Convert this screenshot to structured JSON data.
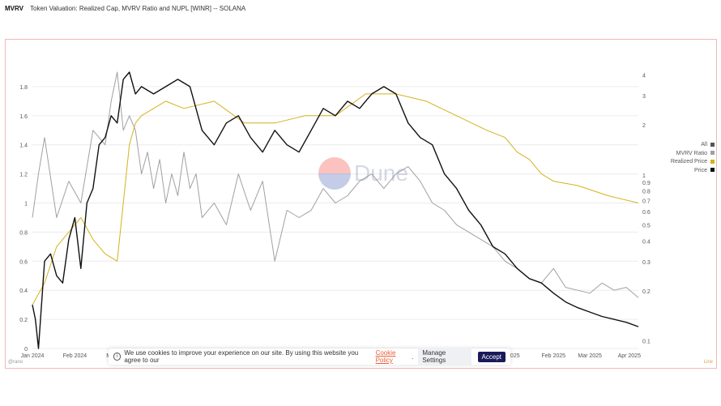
{
  "header": {
    "brand": "MVRV",
    "title": "Token Valuation: Realized Cap, MVRV Ratio and NUPL [WINR] -- SOLANA"
  },
  "legend": [
    {
      "label": "All",
      "color": "#555555"
    },
    {
      "label": "MVRV Ratio",
      "color": "#a0a0a0"
    },
    {
      "label": "Realized Price",
      "color": "#d4b21c"
    },
    {
      "label": "Price",
      "color": "#111111"
    }
  ],
  "watermark": "Dune",
  "footer": {
    "user": "@rano",
    "right": "Line"
  },
  "cookie": {
    "text": "We use cookies to improve your experience on our site. By using this website you agree to our",
    "link": "Cookie Policy",
    "manage": "Manage Settings",
    "accept": "Accept"
  },
  "chart_data": {
    "type": "line",
    "x_ticks": [
      "Jan 2024",
      "Feb 2024",
      "Mar",
      "Feb 2025",
      "Mar 2025",
      "Apr 2025"
    ],
    "x_hidden_partial": "1 2025",
    "y_left": {
      "ticks": [
        0,
        0.2,
        0.4,
        0.6,
        0.8,
        1,
        1.2,
        1.4,
        1.6,
        1.8
      ],
      "range": [
        0,
        1.95
      ]
    },
    "y_right": {
      "scale": "log",
      "ticks": [
        0.1,
        0.2,
        0.3,
        0.4,
        0.5,
        0.6,
        0.7,
        0.8,
        0.9,
        1,
        2,
        3,
        4
      ],
      "range": [
        0.09,
        4.6
      ]
    },
    "series": [
      {
        "name": "MVRV Ratio",
        "axis": "left",
        "color": "#a0a0a0",
        "x": [
          0,
          0.01,
          0.02,
          0.04,
          0.06,
          0.08,
          0.1,
          0.12,
          0.13,
          0.14,
          0.15,
          0.16,
          0.17,
          0.18,
          0.19,
          0.2,
          0.21,
          0.22,
          0.23,
          0.24,
          0.25,
          0.26,
          0.27,
          0.28,
          0.3,
          0.32,
          0.34,
          0.36,
          0.38,
          0.4,
          0.42,
          0.44,
          0.46,
          0.48,
          0.5,
          0.52,
          0.54,
          0.56,
          0.58,
          0.6,
          0.62,
          0.64,
          0.66,
          0.68,
          0.7,
          0.72,
          0.74,
          0.76,
          0.78,
          0.8,
          0.82,
          0.84,
          0.86,
          0.88,
          0.9,
          0.92,
          0.94,
          0.96,
          0.98,
          1.0
        ],
        "y": [
          0.9,
          1.2,
          1.45,
          0.9,
          1.15,
          1.0,
          1.5,
          1.4,
          1.7,
          1.9,
          1.5,
          1.6,
          1.5,
          1.2,
          1.35,
          1.1,
          1.3,
          1.0,
          1.2,
          1.05,
          1.35,
          1.1,
          1.2,
          0.9,
          1.0,
          0.85,
          1.2,
          0.95,
          1.15,
          0.6,
          0.95,
          0.9,
          0.95,
          1.1,
          1.0,
          1.05,
          1.15,
          1.2,
          1.1,
          1.2,
          1.25,
          1.15,
          1.0,
          0.95,
          0.85,
          0.8,
          0.75,
          0.7,
          0.6,
          0.55,
          0.48,
          0.45,
          0.55,
          0.42,
          0.4,
          0.38,
          0.45,
          0.4,
          0.42,
          0.35
        ]
      },
      {
        "name": "Realized Price",
        "axis": "left",
        "color": "#d4b21c",
        "x": [
          0,
          0.02,
          0.04,
          0.06,
          0.08,
          0.1,
          0.12,
          0.14,
          0.15,
          0.16,
          0.17,
          0.18,
          0.2,
          0.22,
          0.25,
          0.3,
          0.35,
          0.4,
          0.45,
          0.5,
          0.55,
          0.6,
          0.65,
          0.7,
          0.75,
          0.78,
          0.8,
          0.82,
          0.84,
          0.86,
          0.9,
          0.95,
          1.0
        ],
        "y": [
          0.3,
          0.45,
          0.7,
          0.8,
          0.9,
          0.75,
          0.65,
          0.6,
          1.0,
          1.4,
          1.55,
          1.6,
          1.65,
          1.7,
          1.65,
          1.7,
          1.55,
          1.55,
          1.6,
          1.6,
          1.75,
          1.75,
          1.7,
          1.6,
          1.5,
          1.45,
          1.35,
          1.3,
          1.2,
          1.15,
          1.12,
          1.05,
          1.0
        ]
      },
      {
        "name": "Price",
        "axis": "left",
        "color": "#111111",
        "x": [
          0,
          0.005,
          0.01,
          0.02,
          0.03,
          0.04,
          0.05,
          0.06,
          0.07,
          0.08,
          0.09,
          0.1,
          0.11,
          0.12,
          0.13,
          0.14,
          0.15,
          0.16,
          0.17,
          0.18,
          0.2,
          0.22,
          0.24,
          0.26,
          0.28,
          0.3,
          0.32,
          0.34,
          0.36,
          0.38,
          0.4,
          0.42,
          0.44,
          0.46,
          0.48,
          0.5,
          0.52,
          0.54,
          0.56,
          0.58,
          0.6,
          0.62,
          0.64,
          0.66,
          0.68,
          0.7,
          0.72,
          0.74,
          0.76,
          0.78,
          0.8,
          0.82,
          0.84,
          0.86,
          0.88,
          0.9,
          0.92,
          0.94,
          0.96,
          0.98,
          1.0
        ],
        "y": [
          0.3,
          0.2,
          0.0,
          0.6,
          0.65,
          0.5,
          0.45,
          0.75,
          0.9,
          0.55,
          1.0,
          1.1,
          1.4,
          1.45,
          1.6,
          1.55,
          1.85,
          1.9,
          1.75,
          1.8,
          1.75,
          1.8,
          1.85,
          1.8,
          1.5,
          1.4,
          1.55,
          1.6,
          1.45,
          1.35,
          1.5,
          1.4,
          1.35,
          1.5,
          1.65,
          1.6,
          1.7,
          1.65,
          1.75,
          1.8,
          1.75,
          1.55,
          1.45,
          1.4,
          1.2,
          1.1,
          0.95,
          0.85,
          0.7,
          0.65,
          0.55,
          0.48,
          0.45,
          0.38,
          0.32,
          0.28,
          0.25,
          0.22,
          0.2,
          0.18,
          0.15
        ]
      }
    ]
  }
}
